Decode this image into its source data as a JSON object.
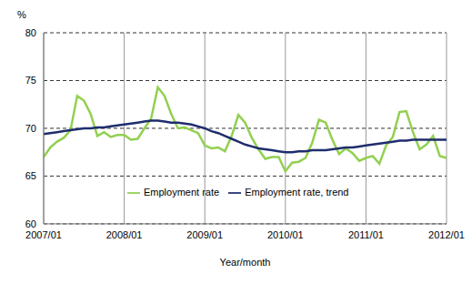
{
  "chart_data": {
    "type": "line",
    "y_label": "%",
    "x_label": "Year/month",
    "categories": [
      "2007/01",
      null,
      null,
      null,
      null,
      null,
      null,
      null,
      null,
      null,
      null,
      null,
      "2008/01",
      null,
      null,
      null,
      null,
      null,
      null,
      null,
      null,
      null,
      null,
      null,
      "2009/01",
      null,
      null,
      null,
      null,
      null,
      null,
      null,
      null,
      null,
      null,
      null,
      "2010/01",
      null,
      null,
      null,
      null,
      null,
      null,
      null,
      null,
      null,
      null,
      null,
      "2011/01",
      null,
      null,
      null,
      null,
      null,
      null,
      null,
      null,
      null,
      null,
      null,
      "2012/01"
    ],
    "series": [
      {
        "name": "Employment rate",
        "color": "#92d050",
        "values": [
          67.0,
          68.0,
          68.6,
          69.0,
          69.8,
          73.4,
          72.9,
          71.5,
          69.2,
          69.6,
          69.1,
          69.3,
          69.3,
          68.8,
          68.9,
          70.0,
          71.0,
          74.3,
          73.4,
          71.5,
          70.0,
          70.1,
          69.8,
          69.5,
          68.2,
          67.9,
          68.0,
          67.6,
          69.2,
          71.4,
          70.6,
          69.0,
          67.8,
          66.8,
          67.0,
          67.0,
          65.5,
          66.4,
          66.5,
          66.9,
          68.5,
          70.9,
          70.6,
          68.8,
          67.3,
          67.9,
          67.4,
          66.6,
          66.9,
          67.1,
          66.3,
          68.2,
          69.1,
          71.7,
          71.8,
          69.6,
          67.8,
          68.3,
          69.2,
          67.1,
          66.9
        ]
      },
      {
        "name": "Employment rate, trend",
        "color": "#1f2d6e",
        "values": [
          69.4,
          69.5,
          69.6,
          69.7,
          69.8,
          69.9,
          70.0,
          70.0,
          70.1,
          70.1,
          70.2,
          70.3,
          70.4,
          70.5,
          70.6,
          70.7,
          70.8,
          70.8,
          70.7,
          70.6,
          70.6,
          70.5,
          70.4,
          70.2,
          70.0,
          69.7,
          69.5,
          69.2,
          68.9,
          68.6,
          68.3,
          68.1,
          67.9,
          67.8,
          67.7,
          67.6,
          67.5,
          67.5,
          67.6,
          67.6,
          67.7,
          67.7,
          67.7,
          67.8,
          67.9,
          68.0,
          68.0,
          68.1,
          68.2,
          68.3,
          68.4,
          68.5,
          68.6,
          68.7,
          68.7,
          68.8,
          68.8,
          68.8,
          68.8,
          68.8,
          68.8
        ]
      }
    ],
    "ylim": [
      60,
      80
    ],
    "yticks": [
      60,
      65,
      70,
      75,
      80
    ],
    "grid": true,
    "legend": "bottom"
  }
}
